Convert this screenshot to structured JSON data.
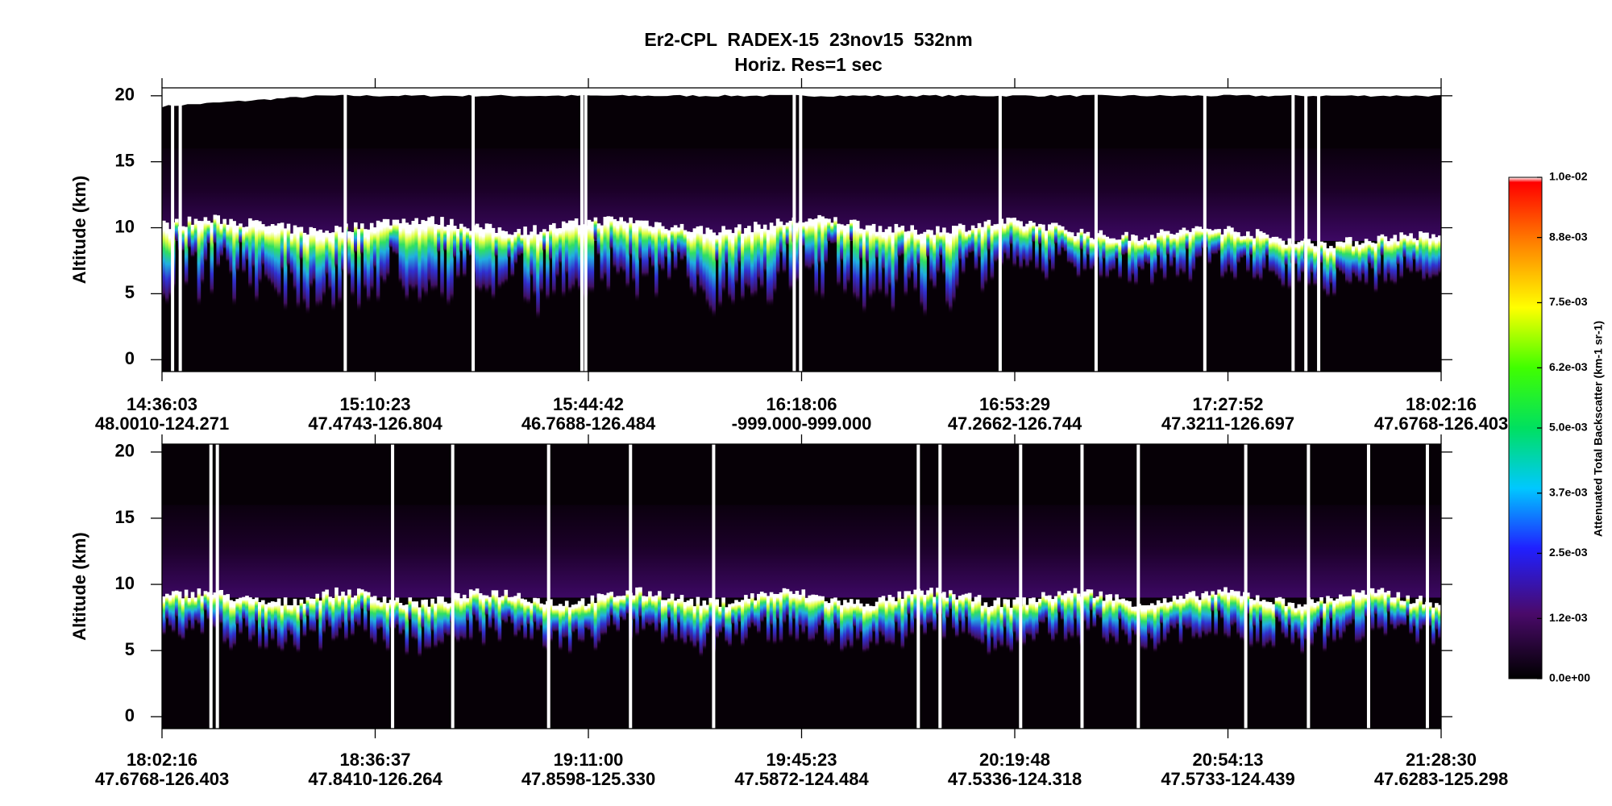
{
  "title": "Er2-CPL  RADEX-15  23nov15  532nm",
  "subtitle": "Horiz. Res=1 sec",
  "chart_data": [
    {
      "type": "curtain",
      "ylabel": "Altitude (km)",
      "ylim": [
        -0.9,
        20.6
      ],
      "yticks": [
        0,
        5,
        10,
        15,
        20
      ],
      "categories": [
        "14:36:03",
        "15:10:23",
        "15:44:42",
        "16:18:06",
        "16:53:29",
        "17:27:52",
        "18:02:16"
      ],
      "category_locations": [
        "48.0010-124.271",
        "47.4743-126.804",
        "46.7688-126.484",
        "-999.000-999.000",
        "47.2662-126.744",
        "47.3211-126.697",
        "47.6768-126.403"
      ]
    },
    {
      "type": "curtain",
      "ylabel": "Altitude (km)",
      "ylim": [
        -0.9,
        20.6
      ],
      "yticks": [
        0,
        5,
        10,
        15,
        20
      ],
      "categories": [
        "18:02:16",
        "18:36:37",
        "19:11:00",
        "19:45:23",
        "20:19:48",
        "20:54:13",
        "21:28:30"
      ],
      "category_locations": [
        "47.6768-126.403",
        "47.8410-126.264",
        "47.8598-125.330",
        "47.5872-124.484",
        "47.5336-124.318",
        "47.5733-124.439",
        "47.6283-125.298"
      ]
    }
  ],
  "colorbar": {
    "label": "Attenuated Total Backscatter (km-1 sr-1)",
    "lim": [
      0,
      0.01
    ],
    "ticks": [
      {
        "value": 0,
        "label": "0.0e+00"
      },
      {
        "value": 0.0012,
        "label": "1.2e-03"
      },
      {
        "value": 0.0025,
        "label": "2.5e-03"
      },
      {
        "value": 0.0037,
        "label": "3.7e-03"
      },
      {
        "value": 0.005,
        "label": "5.0e-03"
      },
      {
        "value": 0.0062,
        "label": "6.2e-03"
      },
      {
        "value": 0.0075,
        "label": "7.5e-03"
      },
      {
        "value": 0.0088,
        "label": "8.8e-03"
      },
      {
        "value": 0.01,
        "label": "1.0e-02"
      }
    ]
  }
}
